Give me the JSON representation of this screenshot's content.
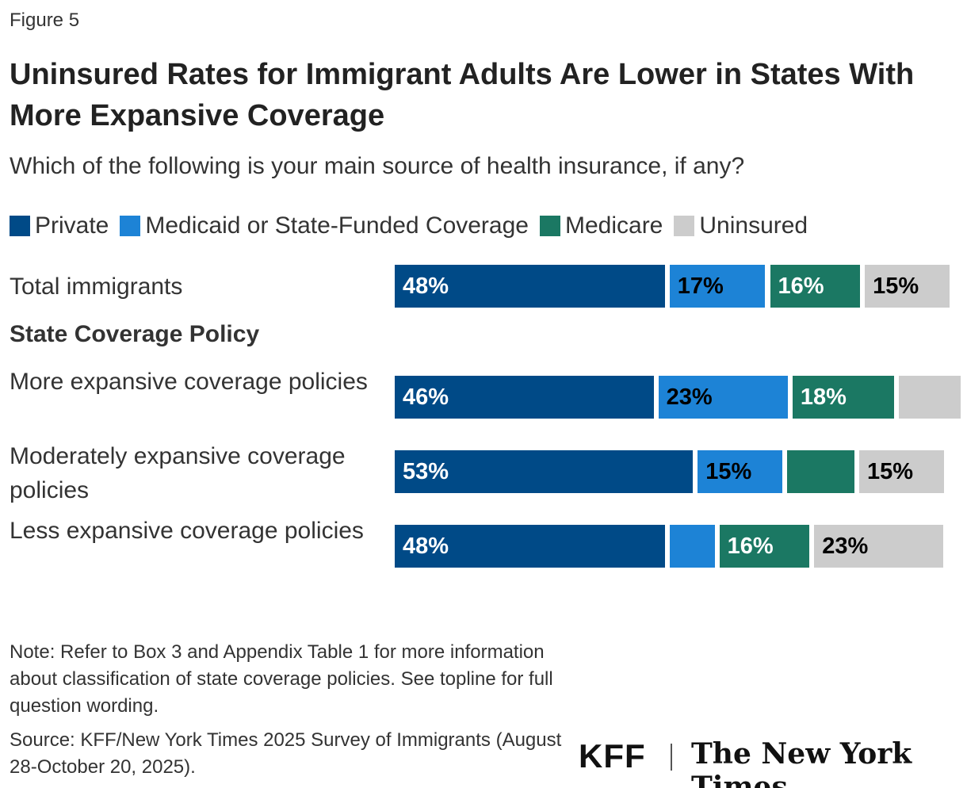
{
  "figure_label": "Figure 5",
  "logos": {
    "kff": "KFF",
    "nyt": "The New York Times"
  },
  "note": "Note: Refer to Box 3 and Appendix Table 1 for more information about classification of state coverage policies. See topline for full question wording.",
  "source": "Source: KFF/New York Times 2025 Survey of Immigrants (August 28-October 20, 2025).",
  "chart_data": {
    "type": "bar",
    "orientation": "horizontal-stacked",
    "title": "Uninsured Rates for Immigrant Adults Are Lower in States With More Expansive Coverage",
    "subtitle": "Which of the following is your main source of health insurance, if any?",
    "group_heading": "State Coverage Policy",
    "legend_placement": "top",
    "grid": false,
    "unit": "%",
    "categories": [
      "Total immigrants",
      "More expansive coverage policies",
      "Moderately expansive coverage policies",
      "Less expansive coverage policies"
    ],
    "series": [
      {
        "name": "Private",
        "color": "#004a87",
        "label_color": "#ffffff",
        "values": [
          48,
          46,
          53,
          48
        ],
        "labels": [
          "48%",
          "46%",
          "53%",
          "48%"
        ]
      },
      {
        "name": "Medicaid or State-Funded Coverage",
        "color": "#1d83d6",
        "label_color": "#000000",
        "values": [
          17,
          23,
          15,
          8
        ],
        "labels": [
          "17%",
          "23%",
          "15%",
          ""
        ]
      },
      {
        "name": "Medicare",
        "color": "#1b7863",
        "label_color": "#ffffff",
        "values": [
          16,
          18,
          12,
          16
        ],
        "labels": [
          "16%",
          "18%",
          "",
          "16%"
        ]
      },
      {
        "name": "Uninsured",
        "color": "#cccccc",
        "label_color": "#000000",
        "values": [
          15,
          11,
          15,
          23
        ],
        "labels": [
          "15%",
          "",
          "15%",
          "23%"
        ]
      }
    ]
  }
}
